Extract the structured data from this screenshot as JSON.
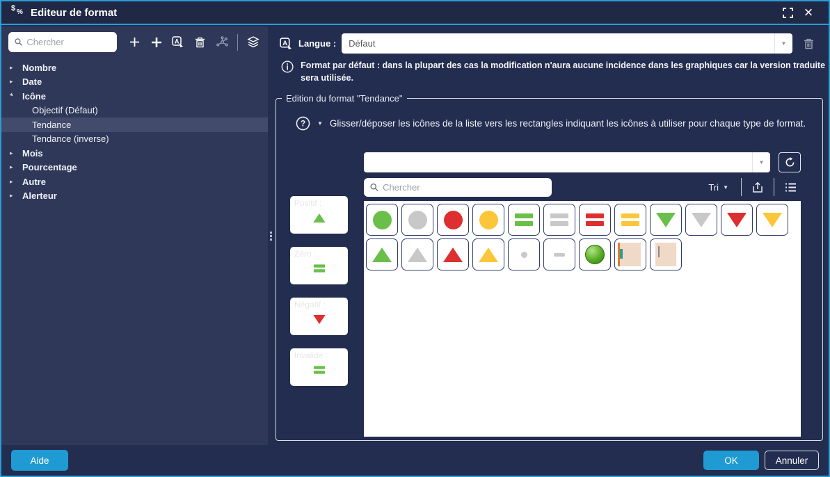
{
  "title_bar": {
    "title": "Editeur de format"
  },
  "icons": {
    "tree_collapsed": "▸",
    "dropdown_caret": "▼",
    "close": "×"
  },
  "colors": {
    "green": "#6abf4a",
    "gray": "#c8c8c8",
    "red": "#dd2f2f",
    "yellow": "#fcc63a",
    "accent_blue": "#1f9ad2",
    "window_border": "#2b9cd8"
  },
  "left_panel": {
    "search_placeholder": "Chercher",
    "toolbar": [
      "add",
      "add-secondary",
      "translate",
      "delete",
      "link-tree",
      "layers"
    ],
    "tree": [
      {
        "label": "Nombre",
        "level": 0,
        "state": "collapsed"
      },
      {
        "label": "Date",
        "level": 0,
        "state": "collapsed"
      },
      {
        "label": "Icône",
        "level": 0,
        "state": "expanded"
      },
      {
        "label": "Objectif (Défaut)",
        "level": 1,
        "state": "leaf"
      },
      {
        "label": "Tendance",
        "level": 1,
        "state": "leaf",
        "selected": true
      },
      {
        "label": "Tendance (inverse)",
        "level": 1,
        "state": "leaf"
      },
      {
        "label": "Mois",
        "level": 0,
        "state": "collapsed"
      },
      {
        "label": "Pourcentage",
        "level": 0,
        "state": "collapsed"
      },
      {
        "label": "Autre",
        "level": 0,
        "state": "collapsed"
      },
      {
        "label": "Alerteur",
        "level": 0,
        "state": "collapsed"
      }
    ]
  },
  "right_panel": {
    "language_label": "Langue :",
    "language_value": "Défaut",
    "info_text": "Format par défaut : dans la plupart des cas la modification n'aura aucune incidence dans les graphiques car la version traduite sera utilisée.",
    "fieldset_legend": "Edition du format \"Tendance\"",
    "hint_text": "Glisser/déposer les icônes de la liste vers les rectangles indiquant les icônes à utiliser pour chaque type de format.",
    "icon_combo_value": "",
    "icon_search_placeholder": "Chercher",
    "sort_label": "Tri",
    "targets": [
      {
        "label": "Positif :",
        "shape": "triangle-up",
        "color": "green"
      },
      {
        "label": "Zéro :",
        "shape": "equals",
        "color": "green"
      },
      {
        "label": "Négatif :",
        "shape": "triangle-down",
        "color": "red"
      },
      {
        "label": "Invalide :",
        "shape": "equals",
        "color": "green"
      }
    ],
    "palette_row1": [
      {
        "name": "green-circle",
        "shape": "circle",
        "color": "green"
      },
      {
        "name": "gray-circle",
        "shape": "circle",
        "color": "gray"
      },
      {
        "name": "red-circle",
        "shape": "circle",
        "color": "red"
      },
      {
        "name": "yellow-circle",
        "shape": "circle",
        "color": "yellow"
      },
      {
        "name": "green-equals",
        "shape": "equals",
        "color": "green"
      },
      {
        "name": "gray-equals",
        "shape": "equals",
        "color": "gray"
      },
      {
        "name": "red-equals",
        "shape": "equals",
        "color": "red"
      },
      {
        "name": "yellow-equals",
        "shape": "equals",
        "color": "yellow"
      },
      {
        "name": "green-triangle-down",
        "shape": "triangle-down",
        "color": "green"
      },
      {
        "name": "gray-triangle-down",
        "shape": "triangle-down",
        "color": "gray"
      },
      {
        "name": "red-triangle-down",
        "shape": "triangle-down",
        "color": "red"
      },
      {
        "name": "yellow-triangle-down",
        "shape": "triangle-down",
        "color": "yellow"
      }
    ],
    "palette_row2": [
      {
        "name": "green-triangle-up",
        "shape": "triangle-up",
        "color": "green"
      },
      {
        "name": "gray-triangle-up",
        "shape": "triangle-up",
        "color": "gray"
      },
      {
        "name": "red-triangle-up",
        "shape": "triangle-up",
        "color": "red"
      },
      {
        "name": "yellow-triangle-up",
        "shape": "triangle-up",
        "color": "yellow"
      },
      {
        "name": "gray-dot",
        "shape": "dot",
        "color": "gray"
      },
      {
        "name": "gray-dash",
        "shape": "dash",
        "color": "gray"
      },
      {
        "name": "green-sphere",
        "shape": "sphere",
        "color": "green"
      },
      {
        "name": "image-stripe",
        "shape": "image-stripe",
        "color": ""
      },
      {
        "name": "image-line",
        "shape": "image-line",
        "color": ""
      }
    ]
  },
  "footer": {
    "help_label": "Aide",
    "ok_label": "OK",
    "cancel_label": "Annuler"
  }
}
